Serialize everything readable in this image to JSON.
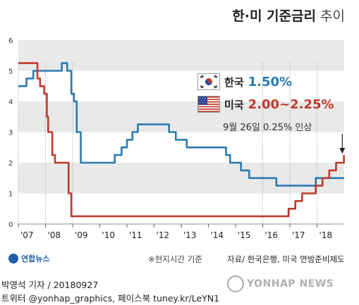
{
  "header": {
    "title_bold": "한·미 기준금리",
    "title_light": "추이"
  },
  "legend": {
    "korea": {
      "label": "한국",
      "value": "1.50%",
      "color": "#2a7ab0"
    },
    "us": {
      "label": "미국",
      "value": "2.00~2.25%",
      "color": "#c0392b"
    },
    "note": "9월 26일 0.25% 인상"
  },
  "footnote": "※현지시간 기준",
  "source": "자료/ 한국은행, 미국 연방준비제도",
  "logo_text": "연합뉴스",
  "byline": "박영석 기자 / 20180927",
  "byline2": "트위터 @yonhap_graphics, 페이스북 tuney.kr/LeYN1",
  "watermark": "YONHAP NEWS",
  "chart_data": {
    "type": "line",
    "title": "한·미 기준금리 추이",
    "x_tick_labels": [
      "'07",
      "'08",
      "'09",
      "'10",
      "'11",
      "'12",
      "'13",
      "'14",
      "'15",
      "'16",
      "'17",
      "'18"
    ],
    "x_ticks": [
      2007,
      2008,
      2009,
      2010,
      2011,
      2012,
      2013,
      2014,
      2015,
      2016,
      2017,
      2018
    ],
    "xlim": [
      2007,
      2019
    ],
    "y_ticks": [
      0,
      1,
      2,
      3,
      4,
      5,
      6
    ],
    "ylim": [
      0,
      6
    ],
    "grid": "alternating horizontal bands",
    "series": [
      {
        "name": "한국",
        "color": "#2a7ab0",
        "x": [
          2007,
          2007.3,
          2007.55,
          2007.8,
          2008.45,
          2008.6,
          2008.8,
          2008.95,
          2009.05,
          2009.15,
          2009.3,
          2010.5,
          2010.55,
          2010.8,
          2011.0,
          2011.2,
          2011.4,
          2011.5,
          2012.5,
          2012.55,
          2012.8,
          2013.2,
          2014.6,
          2014.65,
          2014.8,
          2015.2,
          2015.5,
          2016.45,
          2016.5,
          2017.9,
          2017.95,
          2018.99
        ],
        "y": [
          4.5,
          4.75,
          5.0,
          5.0,
          5.0,
          5.25,
          5.0,
          4.25,
          4.0,
          3.0,
          2.0,
          2.0,
          2.25,
          2.5,
          2.75,
          3.0,
          3.25,
          3.25,
          3.25,
          3.0,
          2.75,
          2.5,
          2.5,
          2.25,
          2.0,
          1.75,
          1.5,
          1.5,
          1.25,
          1.25,
          1.5,
          1.5
        ]
      },
      {
        "name": "미국",
        "color": "#c0392b",
        "x": [
          2007,
          2007.65,
          2007.7,
          2007.8,
          2007.95,
          2008.05,
          2008.1,
          2008.25,
          2008.35,
          2008.8,
          2008.85,
          2008.95,
          2015.95,
          2016.95,
          2017.2,
          2017.45,
          2017.95,
          2018.2,
          2018.45,
          2018.7,
          2018.99
        ],
        "y": [
          5.25,
          5.25,
          4.75,
          4.5,
          4.25,
          3.5,
          3.0,
          2.25,
          2.0,
          2.0,
          1.0,
          0.25,
          0.25,
          0.5,
          0.75,
          1.0,
          1.25,
          1.5,
          1.75,
          2.0,
          2.25
        ]
      }
    ]
  }
}
